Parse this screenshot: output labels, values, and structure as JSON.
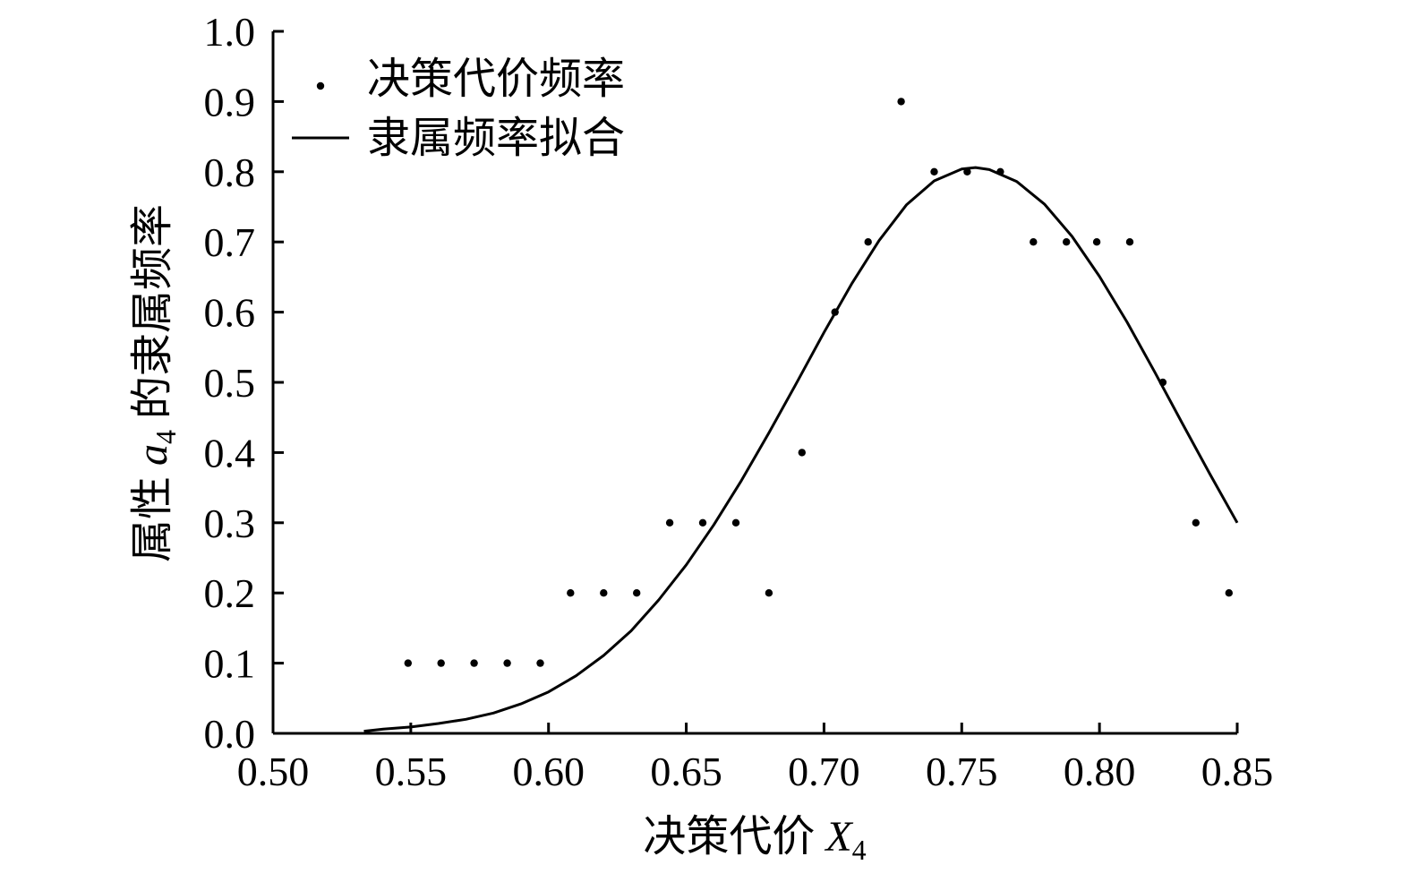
{
  "chart_data": {
    "type": "scatter",
    "xlabel": "决策代价",
    "xlabel_var": "X",
    "xlabel_sub": "4",
    "ylabel_prefix": "属性",
    "ylabel_var": "a",
    "ylabel_sub": "4",
    "ylabel_suffix": "的隶属频率",
    "xlim": [
      0.5,
      0.85
    ],
    "ylim": [
      0.0,
      1.0
    ],
    "x_ticks": [
      "0.50",
      "0.55",
      "0.60",
      "0.65",
      "0.70",
      "0.75",
      "0.80",
      "0.85"
    ],
    "y_ticks": [
      "0.0",
      "0.1",
      "0.2",
      "0.3",
      "0.4",
      "0.5",
      "0.6",
      "0.7",
      "0.8",
      "0.9",
      "1.0"
    ],
    "grid": false,
    "legend_position": "top-left",
    "series": [
      {
        "name": "决策代价频率",
        "kind": "scatter",
        "x": [
          0.549,
          0.561,
          0.573,
          0.585,
          0.597,
          0.608,
          0.62,
          0.632,
          0.644,
          0.656,
          0.668,
          0.68,
          0.692,
          0.704,
          0.716,
          0.728,
          0.74,
          0.752,
          0.764,
          0.776,
          0.788,
          0.799,
          0.811,
          0.823,
          0.835,
          0.847
        ],
        "y": [
          0.1,
          0.1,
          0.1,
          0.1,
          0.1,
          0.2,
          0.2,
          0.2,
          0.3,
          0.3,
          0.3,
          0.2,
          0.4,
          0.6,
          0.7,
          0.9,
          0.8,
          0.8,
          0.8,
          0.7,
          0.7,
          0.7,
          0.7,
          0.5,
          0.3,
          0.2
        ]
      },
      {
        "name": "隶属频率拟合",
        "kind": "line",
        "x": [
          0.533,
          0.54,
          0.55,
          0.56,
          0.57,
          0.58,
          0.59,
          0.6,
          0.61,
          0.62,
          0.63,
          0.64,
          0.65,
          0.66,
          0.67,
          0.68,
          0.69,
          0.7,
          0.71,
          0.72,
          0.73,
          0.74,
          0.75,
          0.755,
          0.76,
          0.77,
          0.78,
          0.79,
          0.8,
          0.81,
          0.82,
          0.83,
          0.84,
          0.85
        ],
        "y": [
          0.003,
          0.006,
          0.009,
          0.014,
          0.02,
          0.029,
          0.042,
          0.059,
          0.082,
          0.111,
          0.146,
          0.19,
          0.24,
          0.297,
          0.36,
          0.428,
          0.499,
          0.571,
          0.64,
          0.702,
          0.753,
          0.787,
          0.804,
          0.806,
          0.803,
          0.786,
          0.754,
          0.708,
          0.651,
          0.586,
          0.515,
          0.442,
          0.37,
          0.3
        ]
      }
    ]
  }
}
